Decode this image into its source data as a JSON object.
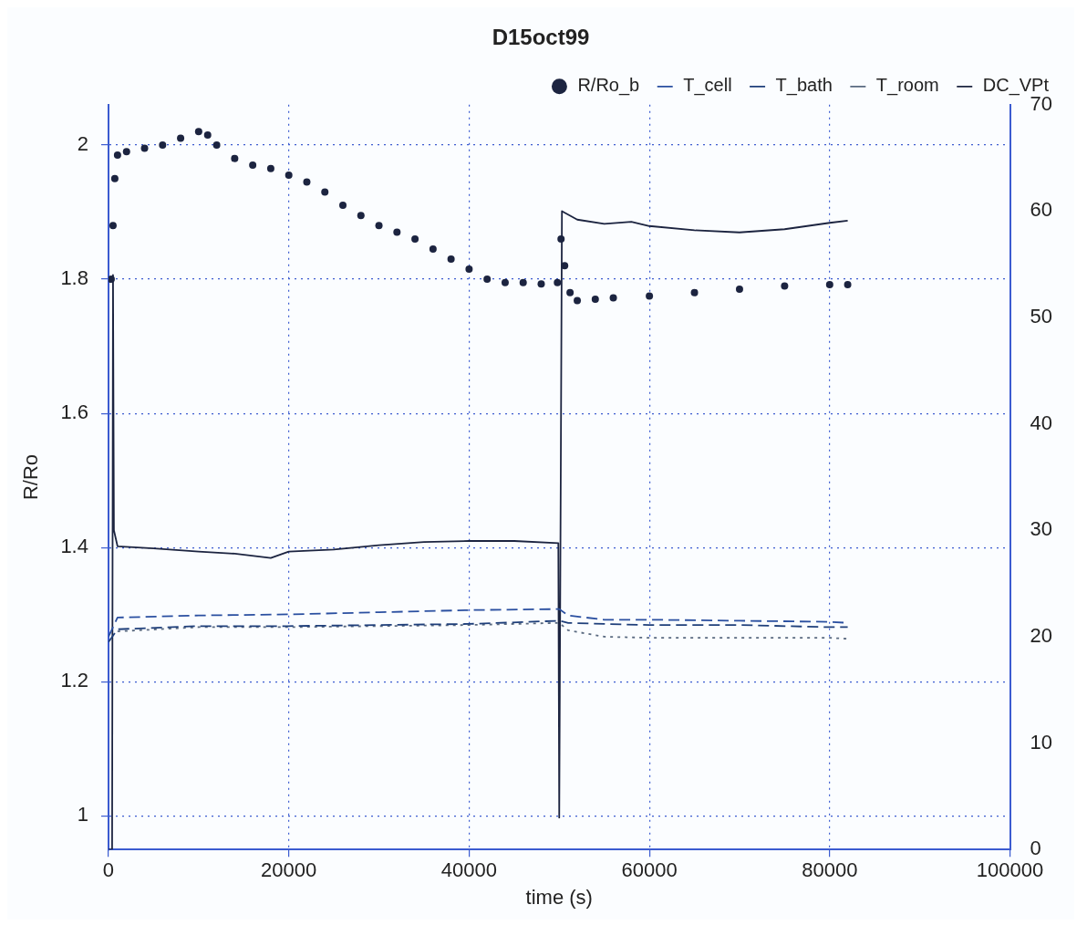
{
  "chart_data": {
    "type": "line",
    "title": "D15oct99",
    "xlabel": "time (s)",
    "ylabel": "R/Ro",
    "xlim": [
      0,
      100000
    ],
    "xticks": [
      0,
      20000,
      40000,
      60000,
      80000,
      100000
    ],
    "ylim": [
      0.95,
      2.06
    ],
    "yticks": [
      1,
      1.2,
      1.4,
      1.6,
      1.8,
      2
    ],
    "y2lim": [
      0,
      70
    ],
    "y2ticks": [
      0,
      10,
      20,
      30,
      40,
      50,
      60,
      70
    ],
    "grid": true,
    "legend": "top",
    "series": [
      {
        "name": "R/Ro_b",
        "type": "scatter",
        "marker": "circle",
        "color": "#1c2440",
        "x": [
          300,
          500,
          700,
          1000,
          2000,
          4000,
          6000,
          8000,
          10000,
          11000,
          12000,
          14000,
          16000,
          18000,
          20000,
          22000,
          24000,
          26000,
          28000,
          30000,
          32000,
          34000,
          36000,
          38000,
          40000,
          42000,
          44000,
          46000,
          48000,
          49800,
          50200,
          50600,
          51200,
          52000,
          54000,
          56000,
          60000,
          65000,
          70000,
          75000,
          80000,
          82000
        ],
        "values": [
          1.8,
          1.88,
          1.95,
          1.985,
          1.99,
          1.995,
          2.0,
          2.01,
          2.02,
          2.015,
          2.0,
          1.98,
          1.97,
          1.965,
          1.955,
          1.945,
          1.93,
          1.91,
          1.895,
          1.88,
          1.87,
          1.86,
          1.845,
          1.83,
          1.815,
          1.8,
          1.795,
          1.795,
          1.793,
          1.795,
          1.86,
          1.82,
          1.78,
          1.768,
          1.77,
          1.772,
          1.775,
          1.78,
          1.785,
          1.79,
          1.792,
          1.792
        ]
      },
      {
        "name": "T_cell",
        "axis": "y2",
        "line_style": "dashed",
        "color": "#2a4fa0",
        "x": [
          0,
          1000,
          10000,
          20000,
          30000,
          40000,
          50000,
          51000,
          55000,
          60000,
          70000,
          80000,
          82000
        ],
        "values": [
          20,
          21.8,
          22,
          22.1,
          22.3,
          22.5,
          22.6,
          22,
          21.6,
          21.6,
          21.5,
          21.4,
          21.3
        ]
      },
      {
        "name": "T_bath",
        "axis": "y2",
        "line_style": "dashed",
        "color": "#1f3f7a",
        "x": [
          0,
          1000,
          10000,
          20000,
          30000,
          40000,
          50000,
          51000,
          55000,
          60000,
          70000,
          80000,
          82000
        ],
        "values": [
          19.5,
          20.7,
          21,
          21,
          21.1,
          21.2,
          21.5,
          21.3,
          21.2,
          21.1,
          21.1,
          20.9,
          20.9
        ]
      },
      {
        "name": "T_room",
        "axis": "y2",
        "line_style": "dotted",
        "color": "#5a6a80",
        "x": [
          1000,
          10000,
          20000,
          30000,
          40000,
          50000,
          51000,
          55000,
          60000,
          70000,
          80000,
          82000
        ],
        "values": [
          20.5,
          20.9,
          20.9,
          21,
          21.1,
          21.3,
          20.6,
          20,
          19.9,
          19.9,
          19.9,
          19.8
        ]
      },
      {
        "name": "DC_VPt",
        "axis": "y2",
        "line_style": "solid",
        "color": "#1c2440",
        "x": [
          0,
          400,
          500,
          600,
          1000,
          5000,
          10000,
          14000,
          18000,
          20000,
          25000,
          30000,
          35000,
          40000,
          45000,
          49900,
          50000,
          50300,
          52000,
          55000,
          58000,
          60000,
          65000,
          70000,
          75000,
          80000,
          82000
        ],
        "values": [
          0,
          0,
          54,
          30,
          28.5,
          28.3,
          28,
          27.8,
          27.4,
          28,
          28.2,
          28.6,
          28.9,
          29,
          29,
          28.8,
          3,
          60,
          59.2,
          58.8,
          59,
          58.6,
          58.2,
          58,
          58.3,
          58.9,
          59.1
        ]
      }
    ]
  }
}
